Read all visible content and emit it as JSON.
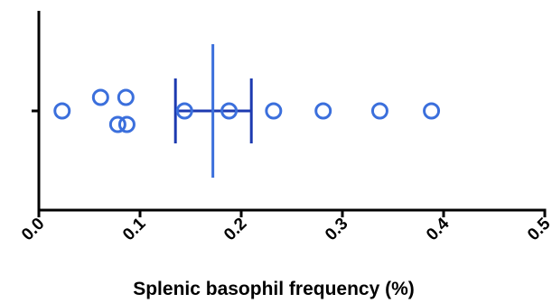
{
  "chart_data": {
    "type": "scatter",
    "orientation": "horizontal",
    "title": "",
    "xlabel": "Splenic basophil frequency (%)",
    "ylabel": "",
    "xlim": [
      0.0,
      0.5
    ],
    "xticks": [
      "0.0",
      "0.1",
      "0.2",
      "0.3",
      "0.4",
      "0.5"
    ],
    "grid": false,
    "series": [
      {
        "points": [
          {
            "x": 0.023,
            "jitter": 0
          },
          {
            "x": 0.061,
            "jitter": 1
          },
          {
            "x": 0.086,
            "jitter": 1
          },
          {
            "x": 0.078,
            "jitter": -1
          },
          {
            "x": 0.087,
            "jitter": -1
          },
          {
            "x": 0.144,
            "jitter": 0
          },
          {
            "x": 0.188,
            "jitter": 0
          },
          {
            "x": 0.232,
            "jitter": 0
          },
          {
            "x": 0.281,
            "jitter": 0
          },
          {
            "x": 0.337,
            "jitter": 0
          },
          {
            "x": 0.388,
            "jitter": 0
          }
        ],
        "mean": 0.172,
        "error_low": 0.135,
        "error_high": 0.21,
        "color": "#3b6fdc",
        "error_color": "#1d3ab0"
      }
    ]
  }
}
